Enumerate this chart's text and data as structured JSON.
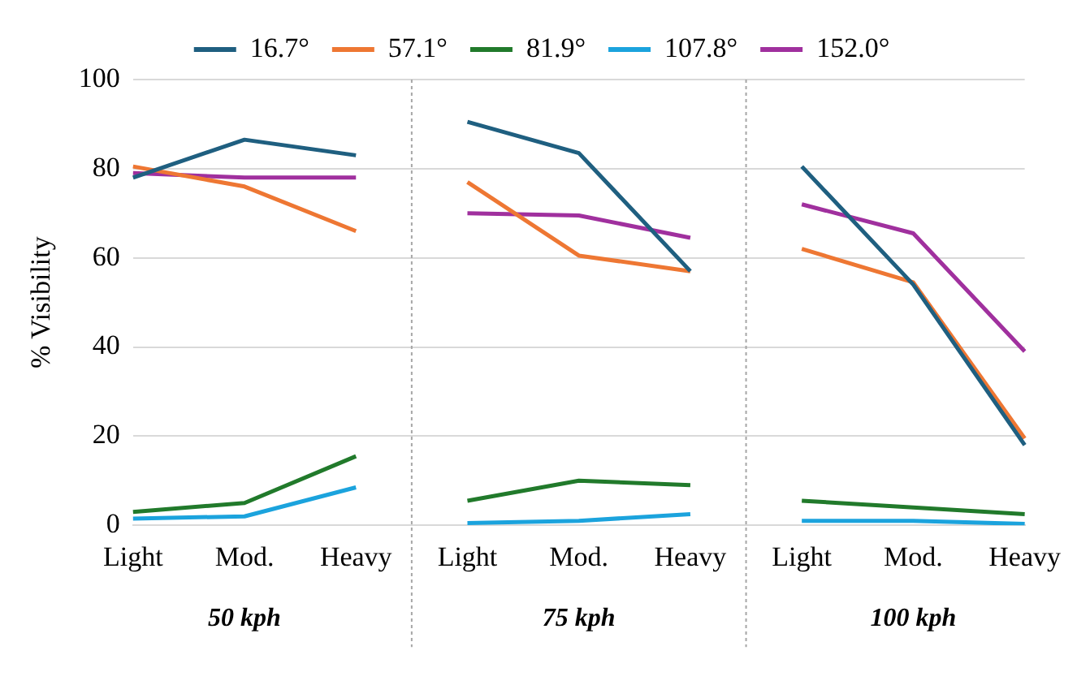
{
  "chart_data": {
    "type": "line",
    "ylabel": "% Visibility",
    "categories": [
      "Light",
      "Mod.",
      "Heavy",
      "Light",
      "Mod.",
      "Heavy",
      "Light",
      "Mod.",
      "Heavy"
    ],
    "annotations": [
      "50 kph",
      "75 kph",
      "100 kph"
    ],
    "series": [
      {
        "name": "16.7°",
        "color": "#1f5f80",
        "values": [
          78,
          86.5,
          83,
          90.5,
          83.5,
          57,
          80.5,
          54,
          18
        ]
      },
      {
        "name": "57.1°",
        "color": "#ee7733",
        "values": [
          80.5,
          76,
          66,
          77,
          60.5,
          57,
          62,
          54.5,
          19.5
        ]
      },
      {
        "name": "81.9°",
        "color": "#217a2b",
        "values": [
          3,
          5,
          15.5,
          5.5,
          10,
          9,
          5.5,
          4,
          2.5
        ]
      },
      {
        "name": "107.8°",
        "color": "#1ba3dd",
        "values": [
          1.5,
          2,
          8.5,
          0.5,
          1,
          2.5,
          1,
          1,
          0.3
        ]
      },
      {
        "name": "152.0°",
        "color": "#a0309e",
        "values": [
          79,
          78,
          78,
          70,
          69.5,
          64.5,
          72,
          65.5,
          39
        ]
      }
    ],
    "ylim": [
      0,
      100
    ],
    "yticks": [
      0,
      20,
      40,
      60,
      80,
      100
    ],
    "grid": "y",
    "legend": "top",
    "marker": "none",
    "line_style": "solid"
  }
}
